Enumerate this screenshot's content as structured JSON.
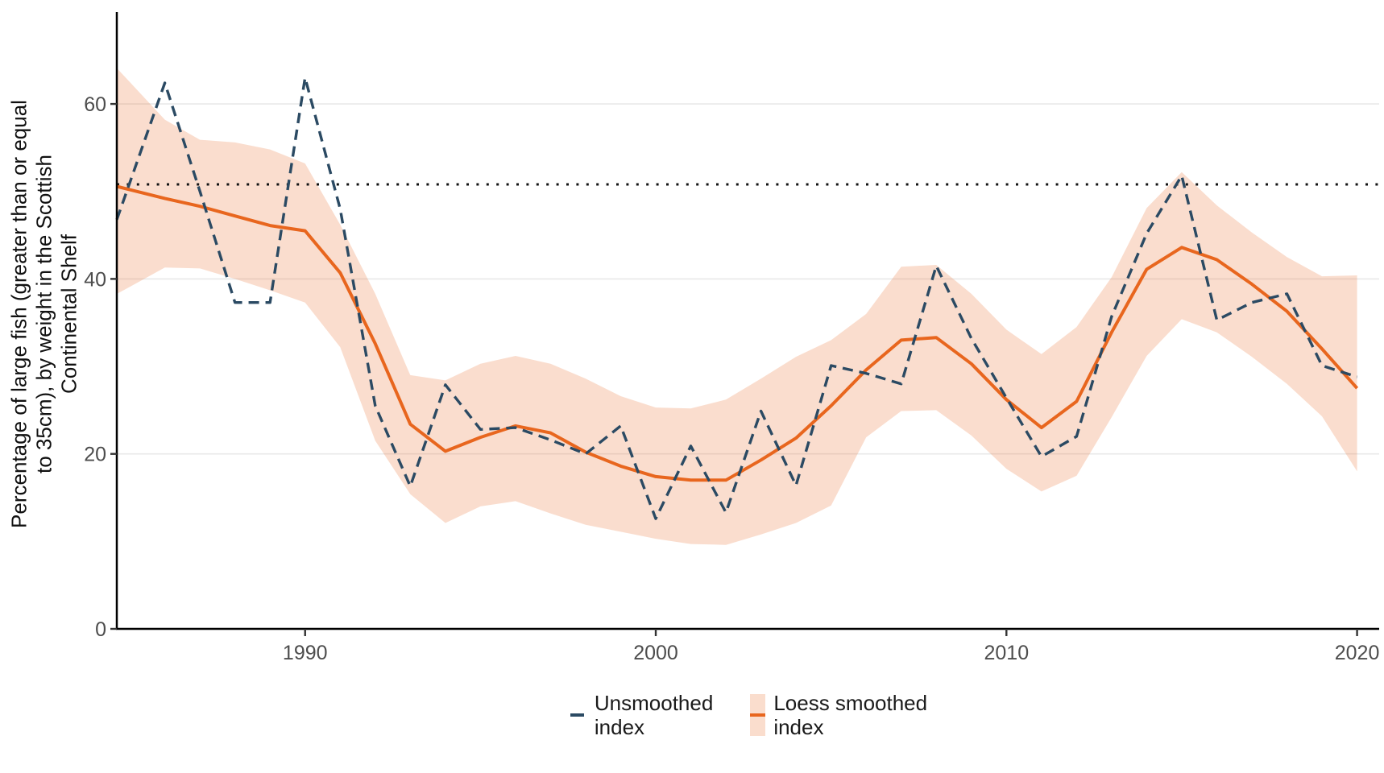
{
  "page": {
    "background": "#ffffff"
  },
  "y_axis": {
    "title": "Percentage of large fish (greater than or equal\nto 35cm), by weight in the Scottish\nContinental Shelf",
    "ticks": [
      0,
      20,
      40,
      60
    ],
    "tick_color": "#4d4d4d"
  },
  "x_axis": {
    "ticks": [
      1990,
      2000,
      2010,
      2020
    ],
    "tick_color": "#4d4d4d"
  },
  "legend": {
    "items": [
      {
        "label": "Unsmoothed\n index",
        "type": "dashed-line",
        "color": "#2B4A63"
      },
      {
        "label": "Loess smoothed\n index",
        "type": "ribbon-with-line",
        "line_color": "#E8661E",
        "fill_color": "#FADDCD"
      }
    ]
  },
  "chart_data": {
    "type": "line",
    "title": "",
    "xlabel": "",
    "ylabel": "Percentage of large fish (greater than or equal to 35cm), by weight in the Scottish Continental Shelf",
    "xlim": [
      1984.63,
      2020.63
    ],
    "ylim": [
      0,
      70.5
    ],
    "grid": "horizontal-light",
    "legend_position": "bottom",
    "x": [
      1985,
      1986,
      1987,
      1988,
      1989,
      1990,
      1991,
      1992,
      1993,
      1994,
      1995,
      1996,
      1997,
      1998,
      1999,
      2000,
      2001,
      2002,
      2003,
      2004,
      2005,
      2006,
      2007,
      2008,
      2009,
      2010,
      2011,
      2012,
      2013,
      2014,
      2015,
      2016,
      2017,
      2018,
      2019,
      2020
    ],
    "series": [
      {
        "name": "Unsmoothed index",
        "style": "dashed",
        "color": "#2B4A63",
        "values": [
          51,
          62.4,
          50,
          37.3,
          37.3,
          63,
          48,
          25.5,
          16.3,
          27.9,
          22.8,
          23,
          21.6,
          20,
          23.2,
          12.6,
          20.9,
          13.3,
          24.9,
          16.4,
          30.1,
          29.2,
          28,
          41.5,
          33.2,
          26.4,
          19.7,
          22,
          35.7,
          45.2,
          51.8,
          35.3,
          37.3,
          38.3,
          30.1,
          28.8
        ]
      },
      {
        "name": "Loess smoothed index",
        "style": "solid",
        "color": "#E8661E",
        "values": [
          50.2,
          49.2,
          48.3,
          47.2,
          46.1,
          45.5,
          40.7,
          32.6,
          23.4,
          20.3,
          21.9,
          23.2,
          22.4,
          20.2,
          18.6,
          17.4,
          17,
          17,
          19.3,
          21.8,
          25.5,
          29.6,
          33,
          33.3,
          30.3,
          26.2,
          23,
          26,
          33.9,
          41.1,
          43.6,
          42.2,
          39.4,
          36.3,
          32,
          27.5
        ]
      }
    ],
    "ribbon": {
      "name": "Loess smoothed confidence band",
      "fill": "rgba(232,102,30,0.22)",
      "upper": [
        62.5,
        58.2,
        55.9,
        55.6,
        54.8,
        53.2,
        46.2,
        38.3,
        29,
        28.4,
        30.3,
        31.2,
        30.3,
        28.6,
        26.6,
        25.3,
        25.2,
        26.2,
        28.6,
        31.1,
        33,
        36,
        41.4,
        41.6,
        38.3,
        34.2,
        31.4,
        34.5,
        40.2,
        48.1,
        52.2,
        48.4,
        45.3,
        42.5,
        40.3,
        40.4
      ],
      "lower": [
        39.1,
        41.3,
        41.2,
        40,
        38.7,
        37.3,
        32.2,
        21.5,
        15.4,
        12.1,
        14,
        14.6,
        13.2,
        11.9,
        11.1,
        10.3,
        9.7,
        9.6,
        10.8,
        12.1,
        14.1,
        21.9,
        24.9,
        25,
        22.1,
        18.3,
        15.7,
        17.5,
        24.2,
        31.2,
        35.4,
        33.9,
        31.1,
        28,
        24.3,
        18
      ]
    },
    "reference_line": {
      "value": 50.8,
      "style": "dotted",
      "color": "#141414"
    },
    "colors": {
      "grid": "#e9e9e9",
      "axis": "#000000"
    }
  }
}
